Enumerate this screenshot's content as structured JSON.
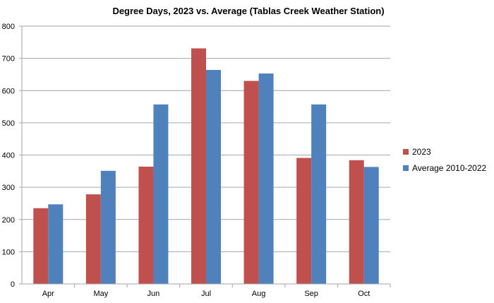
{
  "chart_data": {
    "type": "bar",
    "title": "Degree Days, 2023 vs. Average (Tablas Creek Weather Station)",
    "xlabel": "",
    "ylabel": "",
    "categories": [
      "Apr",
      "May",
      "Jun",
      "Jul",
      "Aug",
      "Sep",
      "Oct"
    ],
    "series": [
      {
        "name": "2023",
        "color": "#C0504D",
        "values": [
          235,
          278,
          364,
          731,
          630,
          391,
          384
        ]
      },
      {
        "name": "Average 2010-2022",
        "color": "#4F81BD",
        "values": [
          247,
          351,
          557,
          664,
          653,
          557,
          363
        ]
      }
    ],
    "ylim": [
      0,
      800
    ],
    "yticks": [
      0,
      100,
      200,
      300,
      400,
      500,
      600,
      700,
      800
    ],
    "grid": true,
    "legend_position": "right"
  }
}
